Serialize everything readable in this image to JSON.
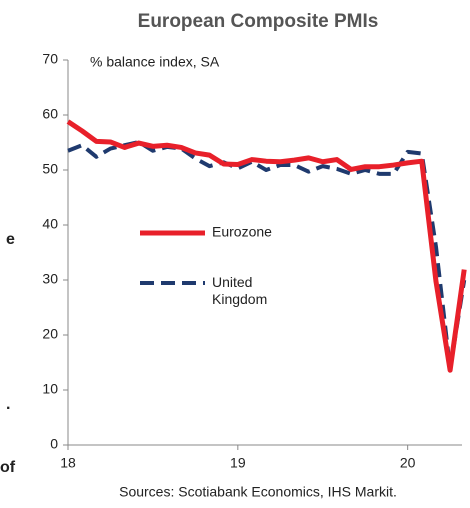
{
  "chart_data": {
    "type": "line",
    "title": "European Composite PMIs",
    "subtitle": "% balance index, SA",
    "source": "Sources: Scotiabank Economics, IHS Markit.",
    "side_text": [
      "e",
      ".",
      "of"
    ],
    "x": [
      18,
      18.083,
      18.167,
      18.25,
      18.333,
      18.417,
      18.5,
      18.583,
      18.667,
      18.75,
      18.833,
      18.917,
      19,
      19.083,
      19.167,
      19.25,
      19.333,
      19.417,
      19.5,
      19.583,
      19.667,
      19.75,
      19.833,
      19.917,
      20,
      20.083,
      20.167,
      20.25,
      20.333
    ],
    "series": [
      {
        "name": "Eurozone",
        "color": "#e8202a",
        "dash": false,
        "values": [
          58.8,
          57.1,
          55.2,
          55.1,
          54.1,
          54.9,
          54.3,
          54.5,
          54.1,
          53.1,
          52.7,
          51.1,
          51.0,
          51.9,
          51.6,
          51.5,
          51.8,
          52.2,
          51.5,
          51.9,
          50.1,
          50.6,
          50.6,
          50.9,
          51.3,
          51.6,
          29.7,
          13.6,
          31.9
        ]
      },
      {
        "name": "United Kingdom",
        "color": "#1f3a6e",
        "dash": true,
        "values": [
          53.5,
          54.5,
          52.4,
          53.9,
          54.5,
          55.1,
          53.5,
          54.2,
          53.9,
          52.1,
          50.7,
          51.4,
          50.3,
          51.5,
          50.0,
          50.9,
          50.9,
          49.7,
          50.7,
          50.2,
          49.3,
          50.0,
          49.3,
          49.3,
          53.3,
          53.0,
          36.0,
          13.8,
          30.0
        ]
      }
    ],
    "xlim": [
      18,
      20.32
    ],
    "xticks": [
      18,
      19,
      20
    ],
    "ylim": [
      0,
      70
    ],
    "yticks": [
      0,
      10,
      20,
      30,
      40,
      50,
      60,
      70
    ],
    "grid": false
  }
}
